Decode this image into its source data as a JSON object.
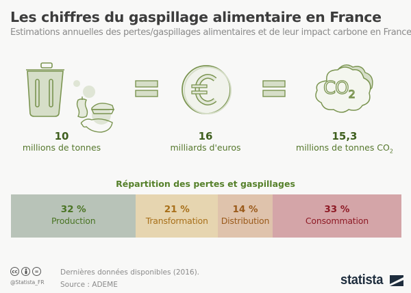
{
  "header": {
    "title": "Les chiffres du gaspillage alimentaire en France",
    "subtitle": "Estimations annuelles des pertes/gaspillages alimentaires et de leur impact carbone en France"
  },
  "icons": {
    "trash": "trash-can-with-food-waste-icon",
    "equals": "equals-icon",
    "euro": "euro-coin-icon",
    "co2": "co2-cloud-icon",
    "co2_text": "CO",
    "co2_sub": "2"
  },
  "stats": [
    {
      "value": "10",
      "unit": "millions de tonnes"
    },
    {
      "value": "16",
      "unit": "milliards d'euros"
    },
    {
      "value": "15,3",
      "unit": "millions de tonnes CO",
      "unit_sub": "2"
    }
  ],
  "breakdown": {
    "title": "Répartition des pertes et gaspillages",
    "segments": [
      {
        "percent": "32 %",
        "label": "Production",
        "value": 32,
        "bg": "#b8c3b8",
        "color": "#4a7424"
      },
      {
        "percent": "21 %",
        "label": "Transformation",
        "value": 21,
        "bg": "#e6d5b0",
        "color": "#a8701a"
      },
      {
        "percent": "14 %",
        "label": "Distribution",
        "value": 14,
        "bg": "#dfc3ac",
        "color": "#9a5a1a"
      },
      {
        "percent": "33 %",
        "label": "Consommation",
        "value": 33,
        "bg": "#d4a5a8",
        "color": "#8e1a25"
      }
    ]
  },
  "footer": {
    "note": "Dernières données disponibles (2016).",
    "source": "Source : ADEME",
    "handle": "@Statista_FR",
    "cc_icons": [
      "cc",
      "by",
      "="
    ],
    "brand": "statista"
  },
  "colors": {
    "icon_fill": "#d6dec8",
    "icon_stroke": "#7a9450",
    "title": "#3c3c3c",
    "accent_green": "#55802a"
  }
}
